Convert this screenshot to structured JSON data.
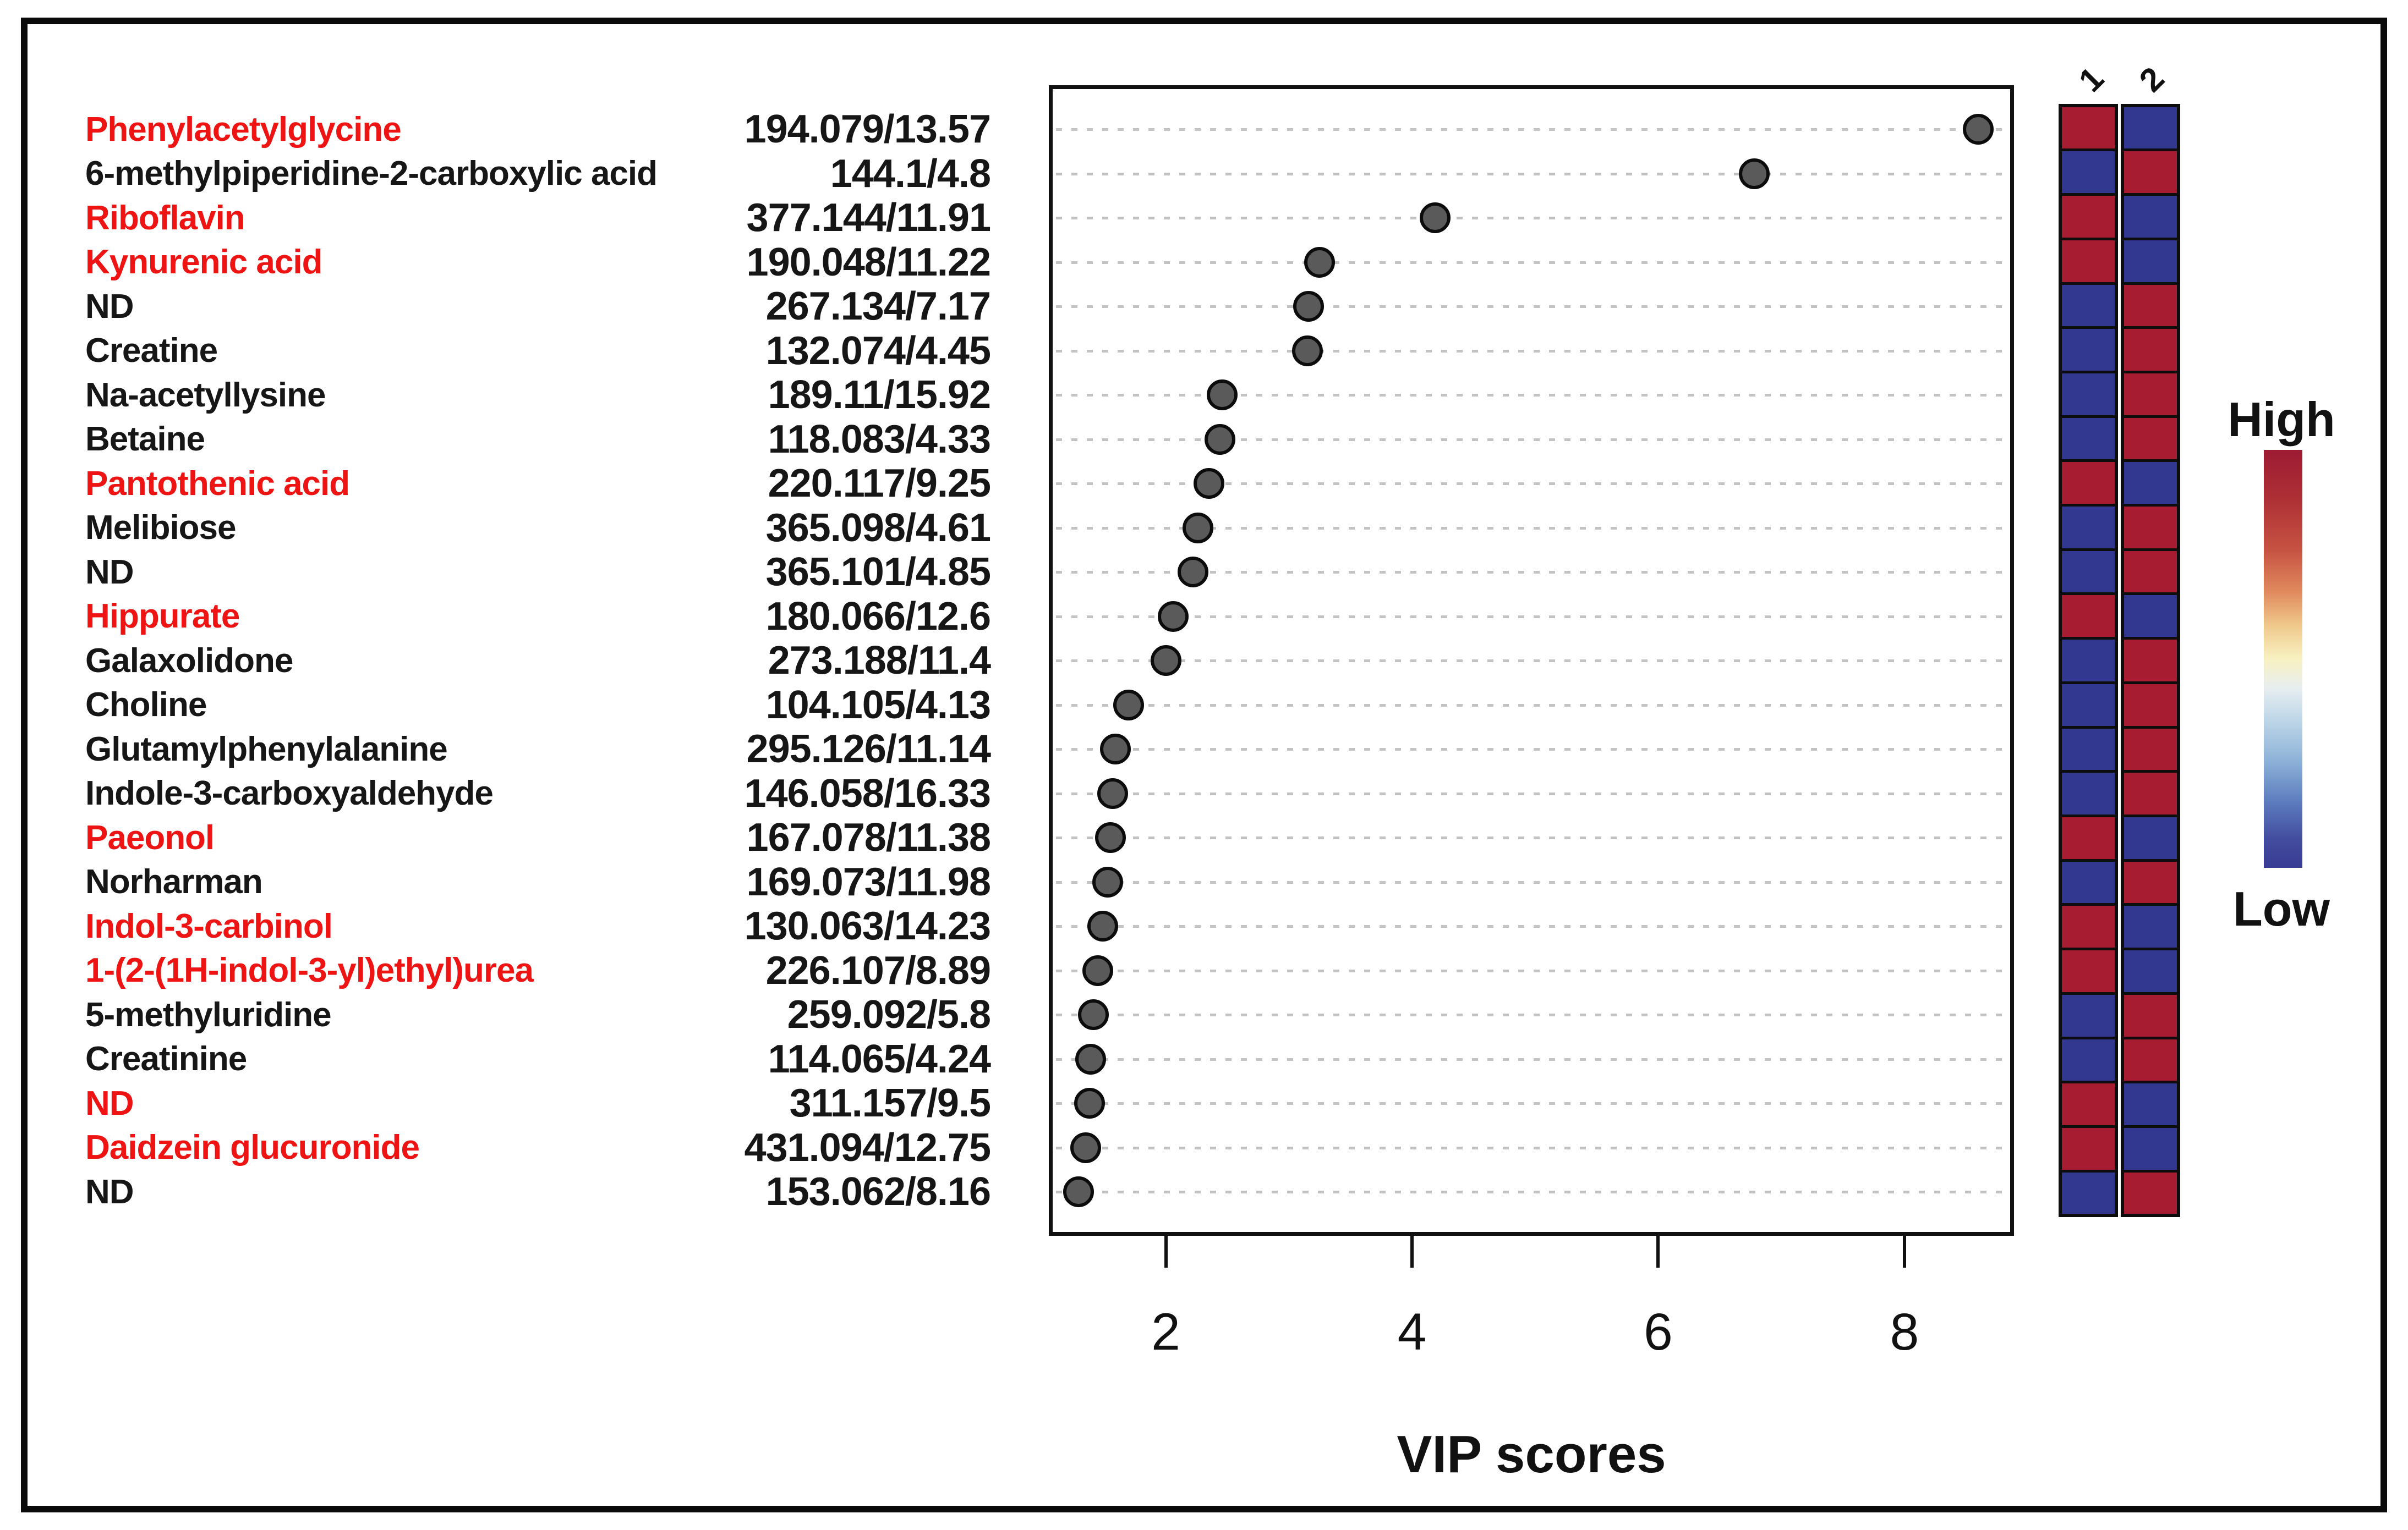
{
  "chart_data": {
    "type": "scatter",
    "title": "",
    "xlabel": "VIP scores",
    "x_ticks": [
      "2",
      "4",
      "6",
      "8"
    ],
    "xlim": [
      1.05,
      8.89
    ],
    "grid": "dotted-horizontal",
    "legend_position": "right",
    "legend": {
      "high_label": "High",
      "low_label": "Low"
    },
    "heatmap_columns": [
      "1",
      "2"
    ],
    "colors": {
      "high": "#a81c32",
      "low": "#32388f",
      "dot_fill": "#5a5a5a",
      "dot_stroke": "#0c0c0c",
      "red_label": "#ee1414",
      "black_label": "#161616",
      "gridline": "#c3c3c3"
    },
    "rows": [
      {
        "name": "Phenylacetylglycine",
        "name_color": "red",
        "mz_rt": "194.079/13.57",
        "vip": 8.6,
        "group1": "high",
        "group2": "low"
      },
      {
        "name": "6-methylpiperidine-2-carboxylic acid",
        "name_color": "black",
        "mz_rt": "144.1/4.8",
        "vip": 6.78,
        "group1": "low",
        "group2": "high"
      },
      {
        "name": "Riboflavin",
        "name_color": "red",
        "mz_rt": "377.144/11.91",
        "vip": 4.19,
        "group1": "high",
        "group2": "low"
      },
      {
        "name": "Kynurenic acid",
        "name_color": "red",
        "mz_rt": "190.048/11.22",
        "vip": 3.25,
        "group1": "high",
        "group2": "low"
      },
      {
        "name": "ND",
        "name_color": "black",
        "mz_rt": "267.134/7.17",
        "vip": 3.16,
        "group1": "low",
        "group2": "high"
      },
      {
        "name": "Creatine",
        "name_color": "black",
        "mz_rt": "132.074/4.45",
        "vip": 3.15,
        "group1": "low",
        "group2": "high"
      },
      {
        "name": "Na-acetyllysine",
        "name_color": "black",
        "mz_rt": "189.11/15.92",
        "vip": 2.46,
        "group1": "low",
        "group2": "high"
      },
      {
        "name": "Betaine",
        "name_color": "black",
        "mz_rt": "118.083/4.33",
        "vip": 2.44,
        "group1": "low",
        "group2": "high"
      },
      {
        "name": "Pantothenic acid",
        "name_color": "red",
        "mz_rt": "220.117/9.25",
        "vip": 2.35,
        "group1": "high",
        "group2": "low"
      },
      {
        "name": "Melibiose",
        "name_color": "black",
        "mz_rt": "365.098/4.61",
        "vip": 2.26,
        "group1": "low",
        "group2": "high"
      },
      {
        "name": "ND",
        "name_color": "black",
        "mz_rt": "365.101/4.85",
        "vip": 2.22,
        "group1": "low",
        "group2": "high"
      },
      {
        "name": "Hippurate",
        "name_color": "red",
        "mz_rt": "180.066/12.6",
        "vip": 2.06,
        "group1": "high",
        "group2": "low"
      },
      {
        "name": "Galaxolidone",
        "name_color": "black",
        "mz_rt": "273.188/11.4",
        "vip": 2.0,
        "group1": "low",
        "group2": "high"
      },
      {
        "name": "Choline",
        "name_color": "black",
        "mz_rt": "104.105/4.13",
        "vip": 1.7,
        "group1": "low",
        "group2": "high"
      },
      {
        "name": "Glutamylphenylalanine",
        "name_color": "black",
        "mz_rt": "295.126/11.14",
        "vip": 1.59,
        "group1": "low",
        "group2": "high"
      },
      {
        "name": "Indole-3-carboxyaldehyde",
        "name_color": "black",
        "mz_rt": "146.058/16.33",
        "vip": 1.57,
        "group1": "low",
        "group2": "high"
      },
      {
        "name": "Paeonol",
        "name_color": "red",
        "mz_rt": "167.078/11.38",
        "vip": 1.55,
        "group1": "high",
        "group2": "low"
      },
      {
        "name": "Norharman",
        "name_color": "black",
        "mz_rt": "169.073/11.98",
        "vip": 1.53,
        "group1": "low",
        "group2": "high"
      },
      {
        "name": "Indol-3-carbinol",
        "name_color": "red",
        "mz_rt": "130.063/14.23",
        "vip": 1.49,
        "group1": "high",
        "group2": "low"
      },
      {
        "name": "1-(2-(1H-indol-3-yl)ethyl)urea",
        "name_color": "red",
        "mz_rt": "226.107/8.89",
        "vip": 1.45,
        "group1": "high",
        "group2": "low"
      },
      {
        "name": "5-methyluridine",
        "name_color": "black",
        "mz_rt": "259.092/5.8",
        "vip": 1.41,
        "group1": "low",
        "group2": "high"
      },
      {
        "name": "Creatinine",
        "name_color": "black",
        "mz_rt": "114.065/4.24",
        "vip": 1.39,
        "group1": "low",
        "group2": "high"
      },
      {
        "name": "ND",
        "name_color": "red",
        "mz_rt": "311.157/9.5",
        "vip": 1.38,
        "group1": "high",
        "group2": "low"
      },
      {
        "name": "Daidzein glucuronide",
        "name_color": "red",
        "mz_rt": "431.094/12.75",
        "vip": 1.35,
        "group1": "high",
        "group2": "low"
      },
      {
        "name": "ND",
        "name_color": "black",
        "mz_rt": "153.062/8.16",
        "vip": 1.29,
        "group1": "low",
        "group2": "high"
      }
    ]
  }
}
